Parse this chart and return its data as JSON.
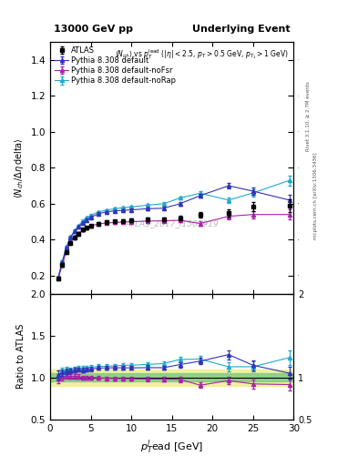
{
  "title_left": "13000 GeV pp",
  "title_right": "Underlying Event",
  "ylabel_main": "$\\langle N_{ch}/ \\Delta\\eta\\, \\mathrm{delta}\\rangle$",
  "ylabel_ratio": "Ratio to ATLAS",
  "xlabel": "$p_T^l$ead [GeV]",
  "watermark": "ATLAS_2017_I1509919",
  "rivet_label": "Rivet 3.1.10, ≥ 2.7M events",
  "mcplots_label": "mcplots.cern.ch [arXiv:1306.3436]",
  "xlim": [
    0,
    30
  ],
  "ylim_main": [
    0.1,
    1.5
  ],
  "ylim_ratio": [
    0.5,
    2.0
  ],
  "yticks_main": [
    0.2,
    0.4,
    0.6,
    0.8,
    1.0,
    1.2,
    1.4
  ],
  "yticks_ratio": [
    0.5,
    1.0,
    1.5,
    2.0
  ],
  "atlas_x": [
    1.0,
    1.5,
    2.0,
    2.5,
    3.0,
    3.5,
    4.0,
    4.5,
    5.0,
    6.0,
    7.0,
    8.0,
    9.0,
    10.0,
    12.0,
    14.0,
    16.0,
    18.5,
    22.0,
    25.0,
    29.5
  ],
  "atlas_y": [
    0.185,
    0.26,
    0.33,
    0.38,
    0.41,
    0.43,
    0.455,
    0.467,
    0.477,
    0.49,
    0.498,
    0.502,
    0.505,
    0.508,
    0.512,
    0.515,
    0.52,
    0.54,
    0.55,
    0.585,
    0.59
  ],
  "atlas_yerr": [
    0.008,
    0.008,
    0.008,
    0.008,
    0.008,
    0.008,
    0.008,
    0.008,
    0.008,
    0.008,
    0.008,
    0.008,
    0.008,
    0.008,
    0.01,
    0.01,
    0.012,
    0.015,
    0.02,
    0.025,
    0.035
  ],
  "py_default_x": [
    1.0,
    1.5,
    2.0,
    2.5,
    3.0,
    3.5,
    4.0,
    4.5,
    5.0,
    6.0,
    7.0,
    8.0,
    9.0,
    10.0,
    12.0,
    14.0,
    16.0,
    18.5,
    22.0,
    25.0,
    29.5
  ],
  "py_default_y": [
    0.19,
    0.275,
    0.355,
    0.41,
    0.445,
    0.47,
    0.495,
    0.51,
    0.525,
    0.545,
    0.555,
    0.56,
    0.563,
    0.566,
    0.572,
    0.575,
    0.6,
    0.645,
    0.7,
    0.67,
    0.62
  ],
  "py_default_yerr": [
    0.006,
    0.006,
    0.006,
    0.006,
    0.006,
    0.006,
    0.006,
    0.006,
    0.006,
    0.006,
    0.006,
    0.006,
    0.006,
    0.006,
    0.008,
    0.008,
    0.01,
    0.012,
    0.016,
    0.02,
    0.028
  ],
  "py_nofsr_x": [
    1.0,
    1.5,
    2.0,
    2.5,
    3.0,
    3.5,
    4.0,
    4.5,
    5.0,
    6.0,
    7.0,
    8.0,
    9.0,
    10.0,
    12.0,
    14.0,
    16.0,
    18.5,
    22.0,
    25.0,
    29.5
  ],
  "py_nofsr_y": [
    0.183,
    0.262,
    0.335,
    0.385,
    0.415,
    0.435,
    0.455,
    0.468,
    0.477,
    0.488,
    0.493,
    0.496,
    0.498,
    0.5,
    0.503,
    0.505,
    0.508,
    0.49,
    0.53,
    0.54,
    0.54
  ],
  "py_nofsr_yerr": [
    0.006,
    0.006,
    0.006,
    0.006,
    0.006,
    0.006,
    0.006,
    0.006,
    0.006,
    0.006,
    0.006,
    0.006,
    0.006,
    0.006,
    0.008,
    0.008,
    0.01,
    0.012,
    0.016,
    0.02,
    0.028
  ],
  "py_norap_x": [
    1.0,
    1.5,
    2.0,
    2.5,
    3.0,
    3.5,
    4.0,
    4.5,
    5.0,
    6.0,
    7.0,
    8.0,
    9.0,
    10.0,
    12.0,
    14.0,
    16.0,
    18.5,
    22.0,
    25.0,
    29.5
  ],
  "py_norap_y": [
    0.19,
    0.28,
    0.36,
    0.415,
    0.45,
    0.478,
    0.505,
    0.522,
    0.535,
    0.555,
    0.565,
    0.572,
    0.578,
    0.582,
    0.592,
    0.6,
    0.632,
    0.658,
    0.62,
    0.66,
    0.73
  ],
  "py_norap_yerr": [
    0.006,
    0.006,
    0.006,
    0.006,
    0.006,
    0.006,
    0.006,
    0.006,
    0.006,
    0.006,
    0.006,
    0.006,
    0.006,
    0.006,
    0.008,
    0.008,
    0.01,
    0.012,
    0.016,
    0.02,
    0.028
  ],
  "color_atlas": "#000000",
  "color_default": "#3333bb",
  "color_nofsr": "#aa22aa",
  "color_norap": "#22aacc",
  "color_band_green": "#88cc88",
  "color_band_yellow": "#eeee88"
}
